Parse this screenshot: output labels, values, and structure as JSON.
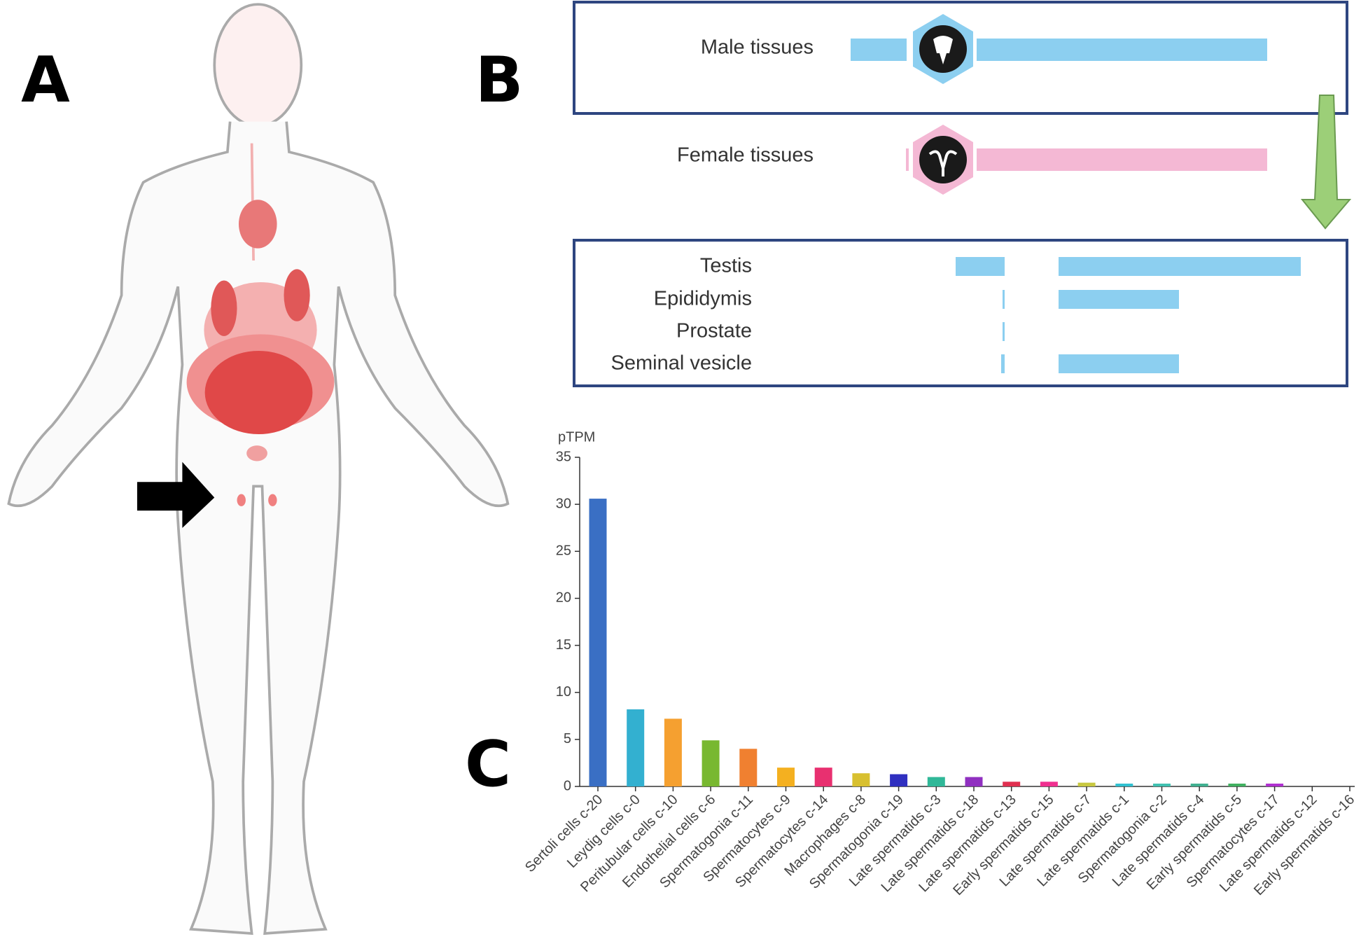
{
  "panel_labels": {
    "a": "A",
    "b": "B",
    "c": "C"
  },
  "tissue_groups": {
    "male": "Male tissues",
    "female": "Female tissues"
  },
  "male_tissues": [
    "Testis",
    "Epididymis",
    "Prostate",
    "Seminal vesicle"
  ],
  "chart_data": {
    "type": "bar",
    "y_label": "pTPM",
    "categories": [
      "Sertoli cells c-20",
      "Leydig cells c-0",
      "Peritubular cells c-10",
      "Endothelial cells c-6",
      "Spermatogonia c-11",
      "Spermatocytes c-9",
      "Spermatocytes c-14",
      "Macrophages c-8",
      "Spermatogonia c-19",
      "Late spermatids c-3",
      "Late spermatids c-18",
      "Late spermatids c-13",
      "Early spermatids c-15",
      "Late spermatids c-7",
      "Late spermatids c-1",
      "Spermatogonia c-2",
      "Late spermatids c-4",
      "Early spermatids c-5",
      "Spermatocytes c-17",
      "Late spermatids c-12",
      "Early spermatids c-16"
    ],
    "values": [
      30.6,
      8.2,
      7.2,
      4.9,
      4.0,
      2.0,
      2.0,
      1.4,
      1.3,
      1.0,
      1.0,
      0.5,
      0.5,
      0.4,
      0.3,
      0.3,
      0.3,
      0.3,
      0.3,
      0,
      0
    ],
    "colors": [
      "#3a6fc4",
      "#33b0d0",
      "#f5a030",
      "#78b830",
      "#f08030",
      "#f4b020",
      "#e83070",
      "#d8c030",
      "#3030c0",
      "#30b898",
      "#9030c0",
      "#e03050",
      "#f03090",
      "#c8c840",
      "#30c0d0",
      "#40c0b0",
      "#40b090",
      "#40b060",
      "#b030d0",
      "#888888",
      "#888888"
    ],
    "ylim": [
      0,
      35
    ],
    "yticks": [
      0,
      5,
      10,
      15,
      20,
      25,
      30,
      35
    ]
  }
}
